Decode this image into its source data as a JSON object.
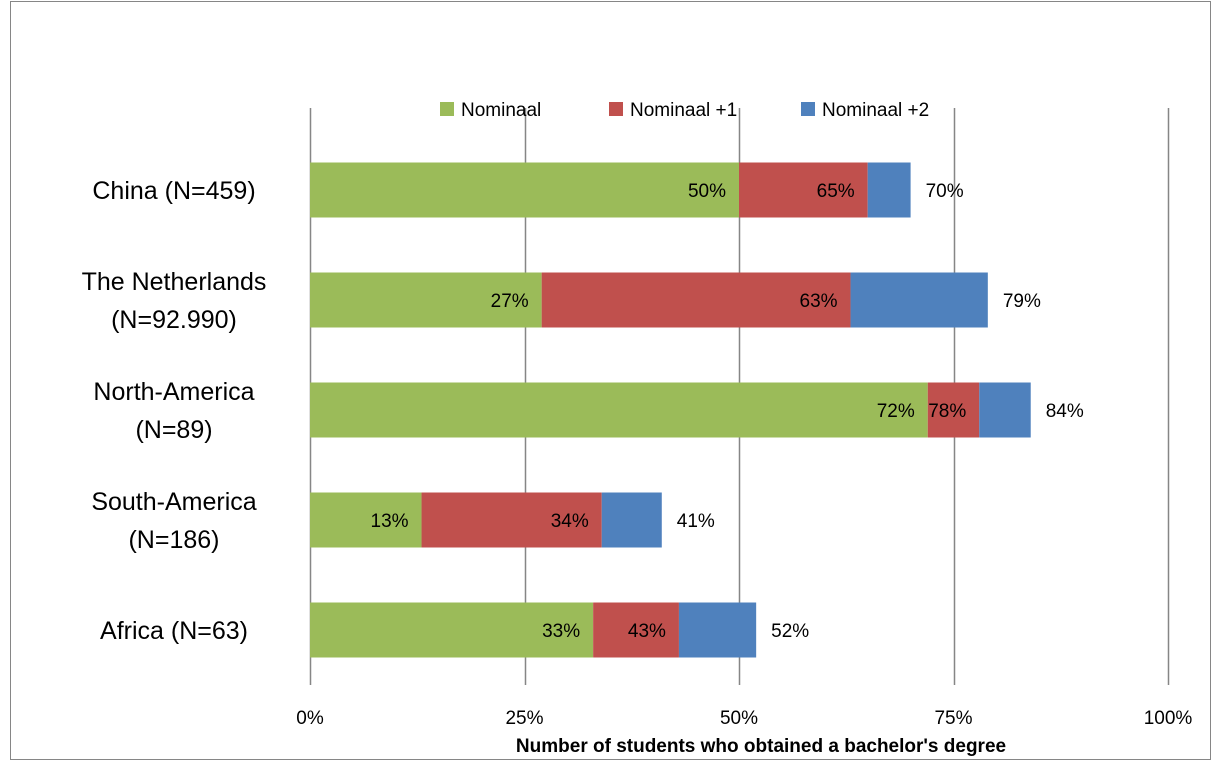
{
  "chart_data": {
    "type": "bar",
    "orientation": "horizontal",
    "stacked": true,
    "title": "",
    "xlabel": "Number of students who obtained a bachelor's  degree",
    "ylabel": "",
    "xlim": [
      0,
      100
    ],
    "x_ticks": [
      "0%",
      "25%",
      "50%",
      "75%",
      "100%"
    ],
    "x_tick_values": [
      0,
      25,
      50,
      75,
      100
    ],
    "grid": "vertical",
    "legend_position": "top",
    "categories": [
      [
        "China (N=459)"
      ],
      [
        "The Netherlands",
        "(N=92.990)"
      ],
      [
        "North-America",
        "(N=89)"
      ],
      [
        "South-America",
        "(N=186)"
      ],
      [
        "Africa (N=63)"
      ]
    ],
    "series": [
      {
        "name": "Nominaal",
        "color": "#9bbb59",
        "cumulative_values": [
          50,
          27,
          72,
          13,
          33
        ],
        "labels": [
          "50%",
          "27%",
          "72%",
          "13%",
          "33%"
        ]
      },
      {
        "name": "Nominaal +1",
        "color": "#c0504d",
        "cumulative_values": [
          65,
          63,
          78,
          34,
          43
        ],
        "labels": [
          "65%",
          "63%",
          "78%",
          "34%",
          "43%"
        ]
      },
      {
        "name": "Nominaal +2",
        "color": "#4f81bd",
        "cumulative_values": [
          70,
          79,
          84,
          41,
          52
        ],
        "labels": [
          "70%",
          "79%",
          "84%",
          "41%",
          "52%"
        ]
      }
    ],
    "colors": {
      "grid": "#868686",
      "border": "#868686"
    }
  }
}
